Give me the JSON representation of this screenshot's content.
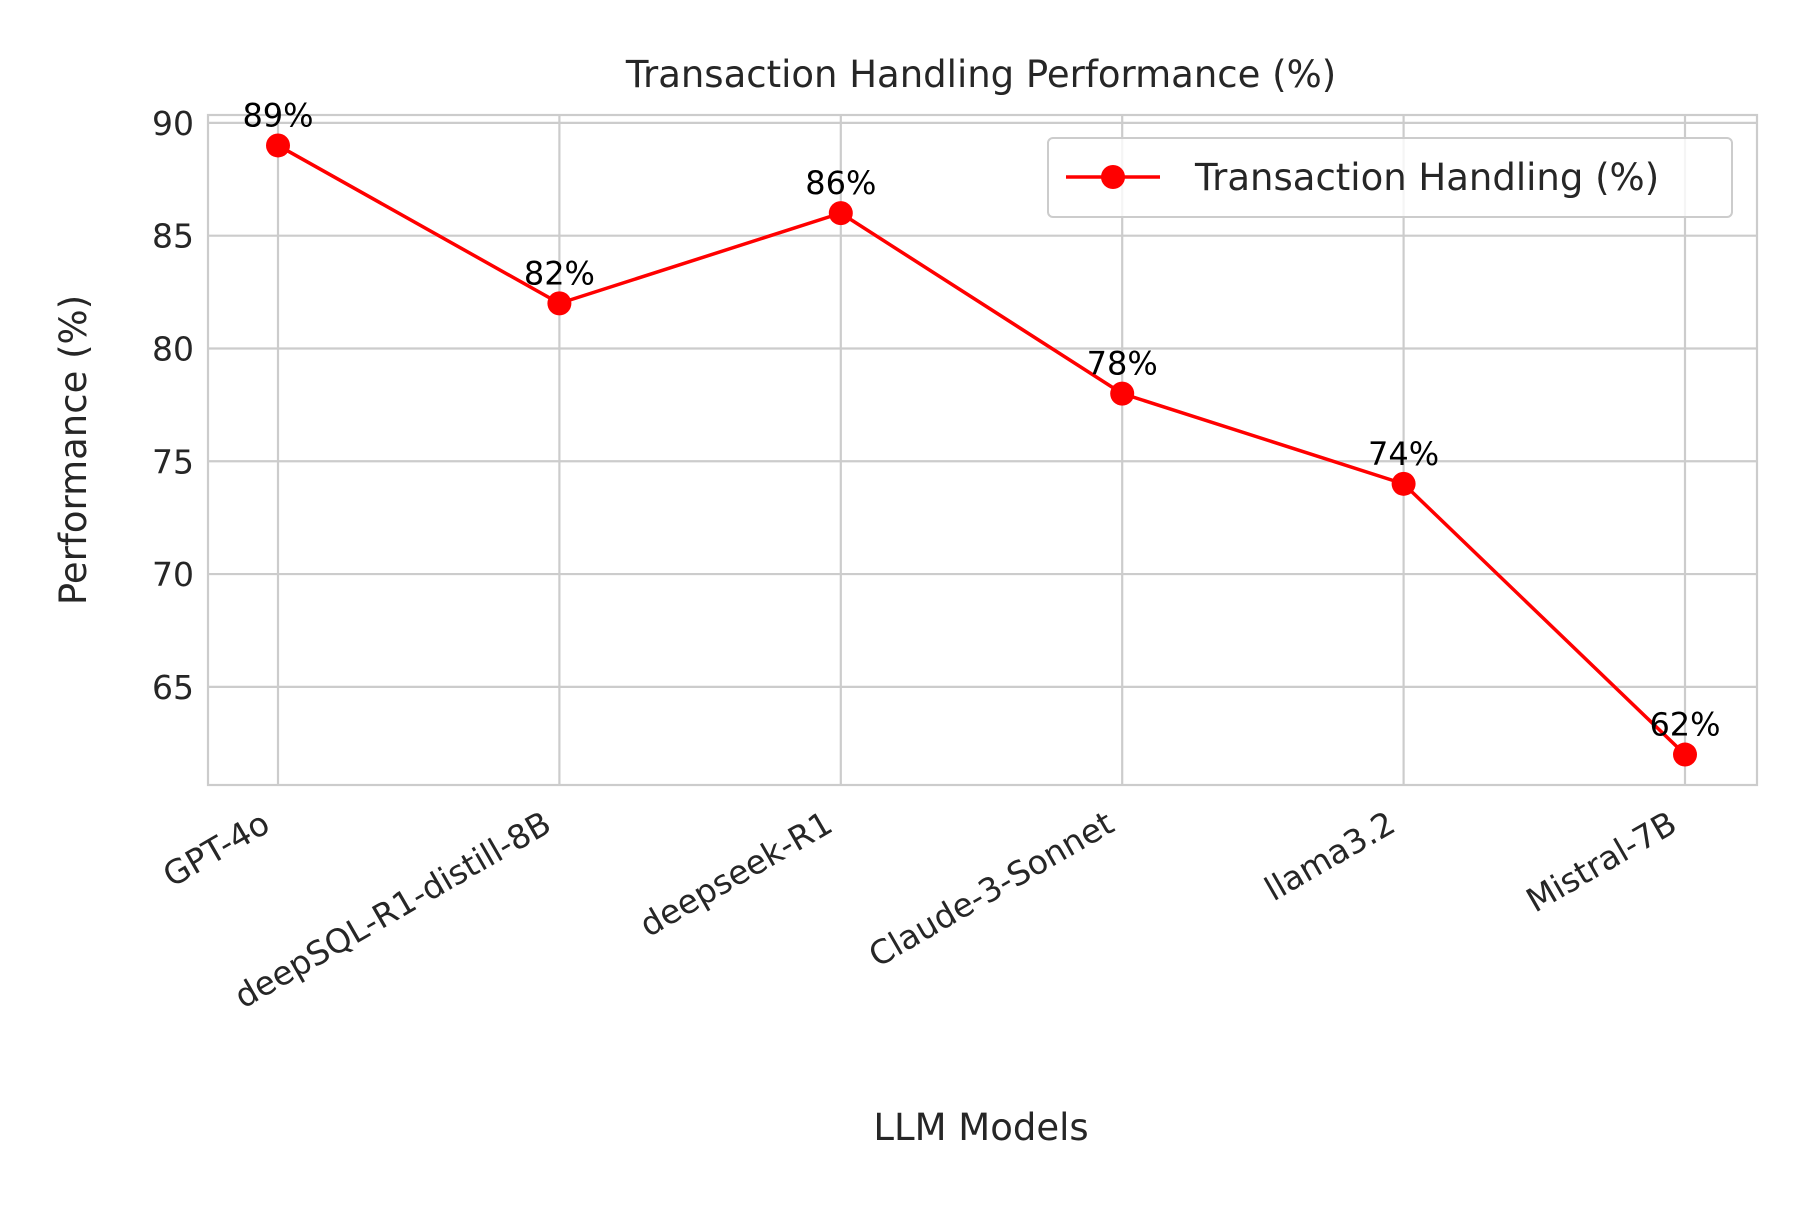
{
  "chart_data": {
    "type": "line",
    "title": "Transaction Handling Performance (%)",
    "xlabel": "LLM Models",
    "ylabel": "Performance (%)",
    "categories": [
      "GPT-4o",
      "deepSQL-R1-distill-8B",
      "deepseek-R1",
      "Claude-3-Sonnet",
      "llama3.2",
      "Mistral-7B"
    ],
    "series": [
      {
        "name": "Transaction Handling (%)",
        "values": [
          89,
          82,
          86,
          78,
          74,
          62
        ],
        "color": "#ff0000",
        "marker": "circle"
      }
    ],
    "data_labels": [
      "89%",
      "82%",
      "86%",
      "78%",
      "74%",
      "62%"
    ],
    "yticks": [
      65,
      70,
      75,
      80,
      85,
      90
    ],
    "ylim": [
      60.65,
      90.35
    ],
    "grid": true,
    "legend_position": "top-right"
  }
}
